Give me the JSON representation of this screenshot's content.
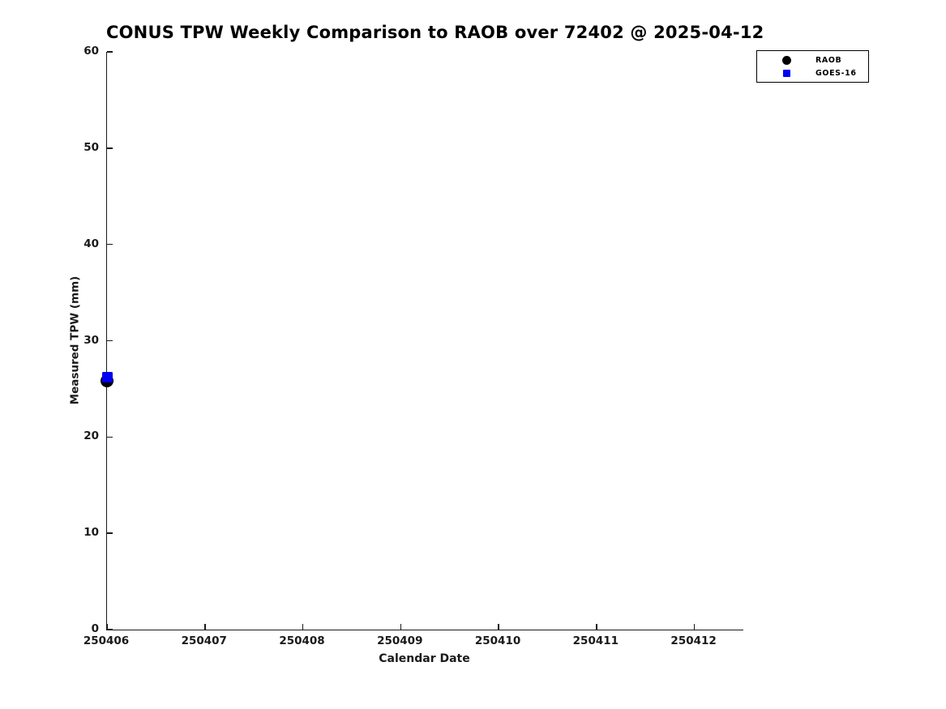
{
  "chart_data": {
    "type": "scatter",
    "title": "CONUS TPW Weekly Comparison to RAOB over 72402 @ 2025-04-12",
    "xlabel": "Calendar Date",
    "ylabel": "Measured TPW (mm)",
    "x_ticks": [
      250406,
      250407,
      250408,
      250409,
      250410,
      250411,
      250412
    ],
    "y_ticks": [
      0,
      10,
      20,
      30,
      40,
      50,
      60
    ],
    "xlim": [
      250406,
      250412.5
    ],
    "ylim": [
      0,
      60
    ],
    "grid": false,
    "legend_position": "upper-right",
    "series": [
      {
        "name": "RAOB",
        "marker": "circle",
        "color": "#000000",
        "points": [
          {
            "x": 250406,
            "y": 25.8
          }
        ]
      },
      {
        "name": "GOES-16",
        "marker": "square",
        "color": "#0000f0",
        "points": [
          {
            "x": 250406,
            "y": 26.2
          }
        ]
      }
    ]
  }
}
